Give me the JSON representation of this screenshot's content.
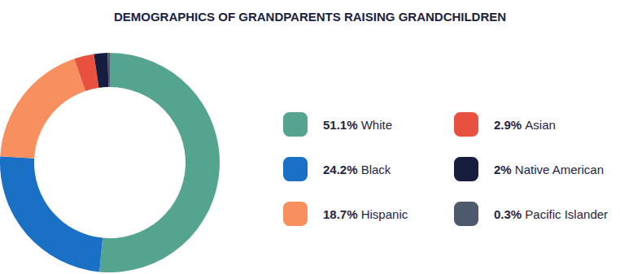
{
  "chart_data": {
    "type": "pie",
    "title": "DEMOGRAPHICS OF GRANDPARENTS RAISING GRANDCHILDREN",
    "categories": [
      "White",
      "Black",
      "Hispanic",
      "Asian",
      "Native American",
      "Pacific Islander"
    ],
    "values": [
      51.1,
      24.2,
      18.7,
      2.9,
      2,
      0.3
    ],
    "value_labels": [
      "51.1%",
      "24.2%",
      "18.7%",
      "2.9%",
      "2%",
      "0.3%"
    ],
    "colors": [
      "#54a48f",
      "#1a70c4",
      "#f78f5f",
      "#e8503f",
      "#161d3f",
      "#4d5a6b"
    ],
    "legend": "right",
    "data_labels": false
  }
}
